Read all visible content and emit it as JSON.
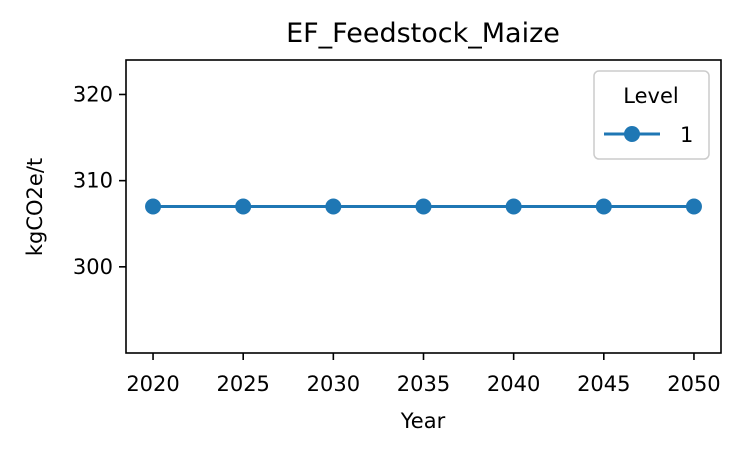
{
  "chart_data": {
    "type": "line",
    "title": "EF_Feedstock_Maize",
    "xlabel": "Year",
    "ylabel": "kgCO2e/t",
    "x": [
      2020,
      2025,
      2030,
      2035,
      2040,
      2045,
      2050
    ],
    "series": [
      {
        "name": "1",
        "values": [
          307,
          307,
          307,
          307,
          307,
          307,
          307
        ]
      }
    ],
    "xlim": [
      2018.5,
      2051.5
    ],
    "ylim": [
      290,
      324
    ],
    "xticks": [
      2020,
      2025,
      2030,
      2035,
      2040,
      2045,
      2050
    ],
    "yticks": [
      300,
      310,
      320
    ],
    "grid": false,
    "legend": {
      "title": "Level",
      "position": "top-right"
    },
    "colors": {
      "series": "#1f77b4",
      "axes": "#000000",
      "background": "#ffffff"
    }
  }
}
